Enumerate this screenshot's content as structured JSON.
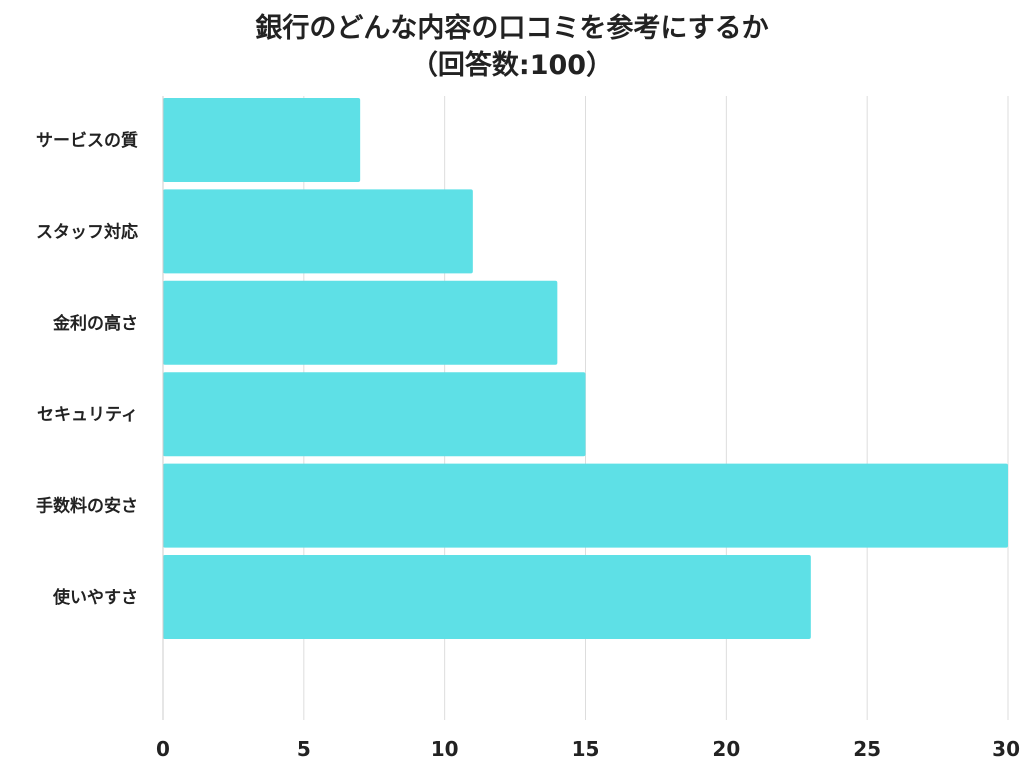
{
  "chart_data": {
    "type": "bar",
    "orientation": "horizontal",
    "title": "銀行のどんな内容の口コミを参考にするか",
    "subtitle": "（回答数:100）",
    "categories": [
      "サービスの質",
      "スタッフ対応",
      "金利の高さ",
      "セキュリティ",
      "手数料の安さ",
      "使いやすさ"
    ],
    "values": [
      7,
      11,
      14,
      15,
      30,
      23
    ],
    "xlim": [
      0,
      30
    ],
    "xticks": [
      0,
      5,
      10,
      15,
      20,
      25,
      30
    ],
    "grid": "vertical",
    "legend": "none",
    "bar_color": "#5ee0e6",
    "grid_color": "#dddddd"
  }
}
